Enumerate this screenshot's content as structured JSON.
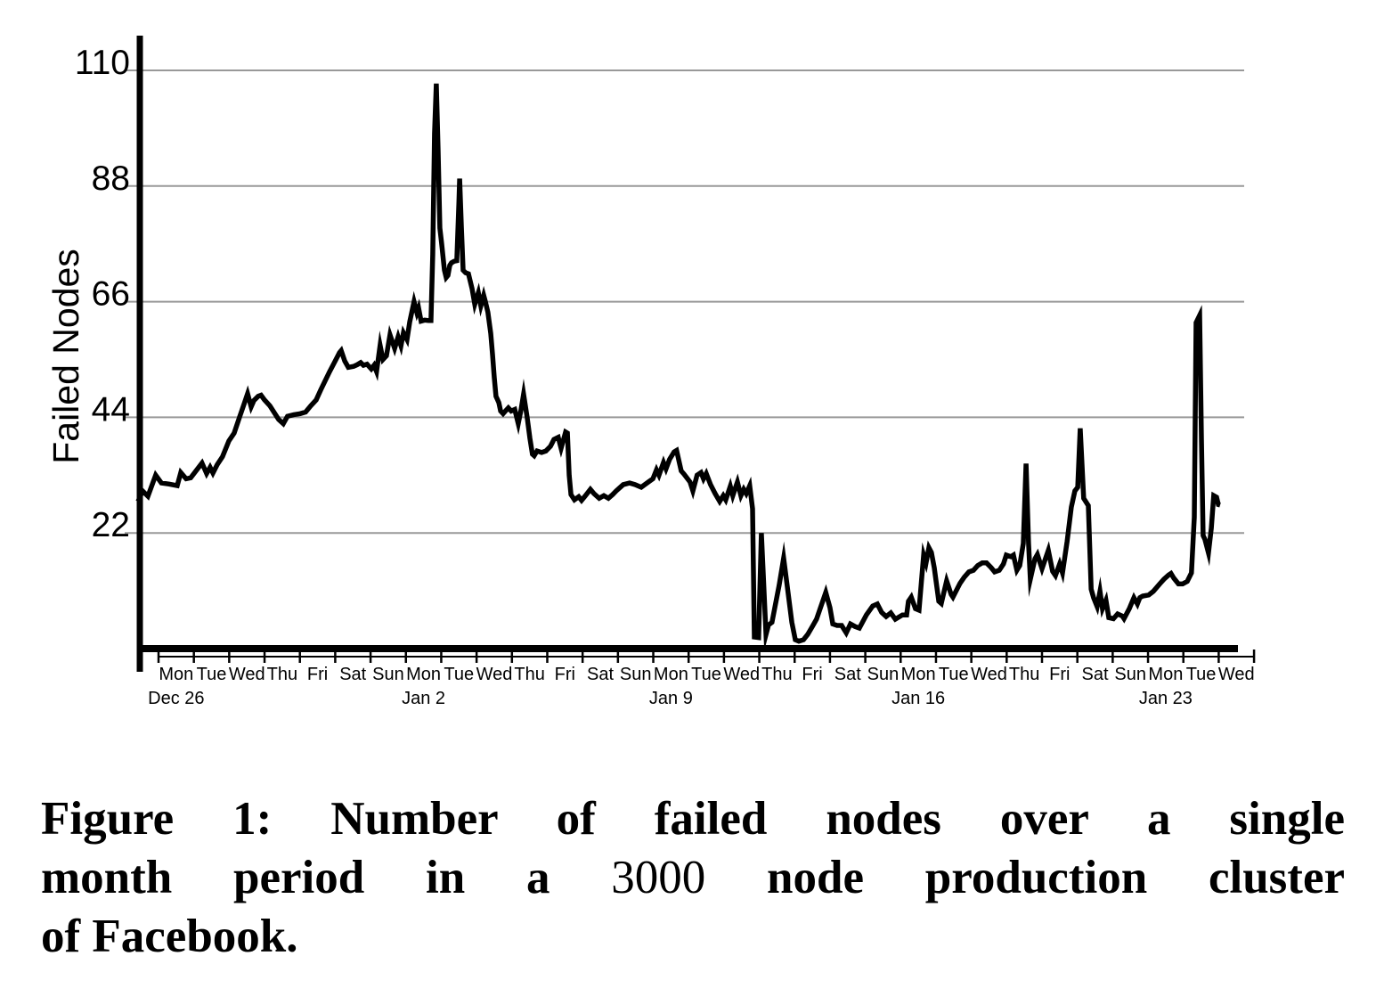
{
  "caption": {
    "line1": "Figure 1: Number of failed nodes over a single",
    "line2_prefix": "month period in a ",
    "line2_number": "3000",
    "line2_suffix": " node production cluster",
    "line3": "of Facebook."
  },
  "chart_data": {
    "type": "line",
    "title": "",
    "xlabel": "",
    "ylabel": "Failed Nodes",
    "x_unit": "days (0 = start of Mon Dec 26)",
    "xlim": [
      -0.6,
      31
    ],
    "ylim": [
      0,
      116
    ],
    "yticks": [
      22,
      44,
      66,
      88,
      110
    ],
    "grid": "horizontal-only",
    "legend": "none",
    "line_color": "#000000",
    "grid_color": "#999999",
    "axis_color": "#000000",
    "day_labels": [
      "Mon",
      "Tue",
      "Wed",
      "Thu",
      "Fri",
      "Sat",
      "Sun",
      "Mon",
      "Tue",
      "Wed",
      "Thu",
      "Fri",
      "Sat",
      "Sun",
      "Mon",
      "Tue",
      "Wed",
      "Thu",
      "Fri",
      "Sat",
      "Sun",
      "Mon",
      "Tue",
      "Wed",
      "Thu",
      "Fri",
      "Sat",
      "Sun",
      "Mon",
      "Tue",
      "Wed"
    ],
    "date_labels": [
      {
        "day_index": 0,
        "label": "Dec 26"
      },
      {
        "day_index": 7,
        "label": "Jan 2"
      },
      {
        "day_index": 14,
        "label": "Jan 9"
      },
      {
        "day_index": 21,
        "label": "Jan 16"
      },
      {
        "day_index": 28,
        "label": "Jan 23"
      }
    ],
    "series": [
      {
        "name": "failed_nodes",
        "points": [
          [
            -0.58,
            28
          ],
          [
            -0.45,
            30
          ],
          [
            -0.3,
            29
          ],
          [
            -0.08,
            33
          ],
          [
            0.08,
            31.5
          ],
          [
            0.3,
            31.3
          ],
          [
            0.53,
            31
          ],
          [
            0.63,
            33.5
          ],
          [
            0.78,
            32.3
          ],
          [
            0.91,
            32.5
          ],
          [
            1.08,
            34
          ],
          [
            1.23,
            35.3
          ],
          [
            1.36,
            33.3
          ],
          [
            1.46,
            34.5
          ],
          [
            1.54,
            33.4
          ],
          [
            1.66,
            35
          ],
          [
            1.81,
            36.5
          ],
          [
            1.99,
            39.5
          ],
          [
            2.14,
            41
          ],
          [
            2.29,
            44
          ],
          [
            2.42,
            46.5
          ],
          [
            2.52,
            48.5
          ],
          [
            2.62,
            46
          ],
          [
            2.7,
            47.2
          ],
          [
            2.82,
            48
          ],
          [
            2.9,
            48.2
          ],
          [
            3,
            47.3
          ],
          [
            3.15,
            46.2
          ],
          [
            3.4,
            43.6
          ],
          [
            3.53,
            42.8
          ],
          [
            3.65,
            44.2
          ],
          [
            3.83,
            44.5
          ],
          [
            4.01,
            44.7
          ],
          [
            4.16,
            45
          ],
          [
            4.31,
            46.2
          ],
          [
            4.46,
            47.3
          ],
          [
            4.59,
            49.2
          ],
          [
            4.74,
            51.3
          ],
          [
            4.84,
            52.7
          ],
          [
            4.99,
            54.6
          ],
          [
            5.12,
            56.3
          ],
          [
            5.17,
            56.7
          ],
          [
            5.27,
            54.7
          ],
          [
            5.37,
            53.5
          ],
          [
            5.52,
            53.7
          ],
          [
            5.62,
            54
          ],
          [
            5.72,
            54.4
          ],
          [
            5.8,
            53.9
          ],
          [
            5.9,
            54.1
          ],
          [
            6.02,
            53.2
          ],
          [
            6.1,
            53.9
          ],
          [
            6.17,
            52.7
          ],
          [
            6.27,
            57.7
          ],
          [
            6.35,
            55
          ],
          [
            6.45,
            55.7
          ],
          [
            6.55,
            59.7
          ],
          [
            6.68,
            57.1
          ],
          [
            6.78,
            59.3
          ],
          [
            6.86,
            57.6
          ],
          [
            6.93,
            60.1
          ],
          [
            7.03,
            58.8
          ],
          [
            7.11,
            62.2
          ],
          [
            7.23,
            66
          ],
          [
            7.31,
            63.9
          ],
          [
            7.36,
            64.8
          ],
          [
            7.43,
            62.3
          ],
          [
            7.53,
            62.5
          ],
          [
            7.64,
            62.4
          ],
          [
            7.71,
            62.4
          ],
          [
            7.76,
            75
          ],
          [
            7.81,
            98
          ],
          [
            7.86,
            107.5
          ],
          [
            7.91,
            95
          ],
          [
            7.96,
            80
          ],
          [
            8.01,
            77.2
          ],
          [
            8.09,
            72
          ],
          [
            8.14,
            70.6
          ],
          [
            8.19,
            71
          ],
          [
            8.24,
            72.9
          ],
          [
            8.29,
            73.4
          ],
          [
            8.37,
            73.7
          ],
          [
            8.44,
            73.8
          ],
          [
            8.5,
            85
          ],
          [
            8.52,
            89.4
          ],
          [
            8.57,
            80
          ],
          [
            8.62,
            72
          ],
          [
            8.69,
            71.5
          ],
          [
            8.77,
            71.3
          ],
          [
            8.87,
            68.5
          ],
          [
            8.95,
            65.5
          ],
          [
            9.05,
            67.7
          ],
          [
            9.12,
            65.2
          ],
          [
            9.2,
            67.2
          ],
          [
            9.25,
            66
          ],
          [
            9.32,
            64
          ],
          [
            9.4,
            60
          ],
          [
            9.45,
            56
          ],
          [
            9.5,
            51.5
          ],
          [
            9.55,
            48
          ],
          [
            9.63,
            46.8
          ],
          [
            9.68,
            45.2
          ],
          [
            9.75,
            44.7
          ],
          [
            9.83,
            45.3
          ],
          [
            9.9,
            45.8
          ],
          [
            9.98,
            45.2
          ],
          [
            10.08,
            45.5
          ],
          [
            10.18,
            42.8
          ],
          [
            10.26,
            45.5
          ],
          [
            10.33,
            48.4
          ],
          [
            10.43,
            44
          ],
          [
            10.51,
            40
          ],
          [
            10.58,
            37
          ],
          [
            10.63,
            36.7
          ],
          [
            10.71,
            37.6
          ],
          [
            10.84,
            37.3
          ],
          [
            10.96,
            37.6
          ],
          [
            11.09,
            38.5
          ],
          [
            11.19,
            39.8
          ],
          [
            11.31,
            40.2
          ],
          [
            11.39,
            38.1
          ],
          [
            11.52,
            41.2
          ],
          [
            11.57,
            41
          ],
          [
            11.62,
            33
          ],
          [
            11.67,
            29.3
          ],
          [
            11.77,
            28.3
          ],
          [
            11.89,
            28.9
          ],
          [
            11.97,
            28.2
          ],
          [
            12.07,
            29
          ],
          [
            12.22,
            30.3
          ],
          [
            12.32,
            29.5
          ],
          [
            12.47,
            28.6
          ],
          [
            12.6,
            29.1
          ],
          [
            12.73,
            28.6
          ],
          [
            12.85,
            29.3
          ],
          [
            12.95,
            30
          ],
          [
            13.15,
            31.2
          ],
          [
            13.33,
            31.5
          ],
          [
            13.48,
            31.2
          ],
          [
            13.66,
            30.7
          ],
          [
            13.86,
            31.7
          ],
          [
            13.99,
            32.3
          ],
          [
            14.09,
            34
          ],
          [
            14.16,
            33
          ],
          [
            14.29,
            35.4
          ],
          [
            14.36,
            34.2
          ],
          [
            14.46,
            36
          ],
          [
            14.59,
            37.4
          ],
          [
            14.66,
            37.7
          ],
          [
            14.79,
            33.8
          ],
          [
            14.87,
            33.2
          ],
          [
            15.04,
            31.7
          ],
          [
            15.12,
            30
          ],
          [
            15.24,
            33
          ],
          [
            15.35,
            33.5
          ],
          [
            15.42,
            32.3
          ],
          [
            15.5,
            33.3
          ],
          [
            15.62,
            31.2
          ],
          [
            15.75,
            29.5
          ],
          [
            15.88,
            28
          ],
          [
            15.98,
            29.1
          ],
          [
            16.05,
            28.3
          ],
          [
            16.18,
            30.9
          ],
          [
            16.25,
            29.1
          ],
          [
            16.38,
            31.7
          ],
          [
            16.48,
            29.1
          ],
          [
            16.56,
            30.3
          ],
          [
            16.63,
            29.5
          ],
          [
            16.73,
            31
          ],
          [
            16.81,
            26.6
          ],
          [
            16.86,
            2.2
          ],
          [
            16.98,
            2.1
          ],
          [
            17.06,
            22
          ],
          [
            17.19,
            2.7
          ],
          [
            17.26,
            4.5
          ],
          [
            17.36,
            5
          ],
          [
            17.56,
            12
          ],
          [
            17.69,
            17.2
          ],
          [
            17.77,
            13
          ],
          [
            17.92,
            5
          ],
          [
            18.02,
            1.7
          ],
          [
            18.12,
            1.4
          ],
          [
            18.25,
            1.7
          ],
          [
            18.37,
            2.7
          ],
          [
            18.5,
            4.2
          ],
          [
            18.62,
            5.6
          ],
          [
            18.88,
            10.7
          ],
          [
            19,
            7.8
          ],
          [
            19.08,
            4.7
          ],
          [
            19.2,
            4.4
          ],
          [
            19.33,
            4.4
          ],
          [
            19.46,
            3
          ],
          [
            19.58,
            4.7
          ],
          [
            19.71,
            4.2
          ],
          [
            19.83,
            3.9
          ],
          [
            20.03,
            6.4
          ],
          [
            20.21,
            8.1
          ],
          [
            20.34,
            8.5
          ],
          [
            20.46,
            6.9
          ],
          [
            20.59,
            6.1
          ],
          [
            20.72,
            6.8
          ],
          [
            20.85,
            5.6
          ],
          [
            21.05,
            6.4
          ],
          [
            21.17,
            6.4
          ],
          [
            21.22,
            9
          ],
          [
            21.3,
            9.8
          ],
          [
            21.42,
            7.6
          ],
          [
            21.52,
            7.3
          ],
          [
            21.65,
            17.8
          ],
          [
            21.72,
            16.3
          ],
          [
            21.8,
            19.2
          ],
          [
            21.87,
            18.3
          ],
          [
            21.95,
            15.4
          ],
          [
            22.08,
            9
          ],
          [
            22.15,
            8.6
          ],
          [
            22.3,
            12.9
          ],
          [
            22.43,
            10.3
          ],
          [
            22.48,
            9.8
          ],
          [
            22.68,
            12.4
          ],
          [
            22.8,
            13.6
          ],
          [
            22.93,
            14.6
          ],
          [
            23.06,
            14.9
          ],
          [
            23.18,
            15.8
          ],
          [
            23.31,
            16.3
          ],
          [
            23.43,
            16.3
          ],
          [
            23.56,
            15.4
          ],
          [
            23.66,
            14.6
          ],
          [
            23.79,
            14.9
          ],
          [
            23.91,
            16.1
          ],
          [
            23.99,
            17.8
          ],
          [
            24.12,
            17.5
          ],
          [
            24.19,
            17.8
          ],
          [
            24.29,
            14.9
          ],
          [
            24.37,
            15.8
          ],
          [
            24.47,
            20
          ],
          [
            24.55,
            35.2
          ],
          [
            24.62,
            20
          ],
          [
            24.67,
            13.2
          ],
          [
            24.8,
            17.1
          ],
          [
            24.87,
            17.9
          ],
          [
            25,
            15.2
          ],
          [
            25.18,
            18.7
          ],
          [
            25.3,
            14.7
          ],
          [
            25.38,
            13.9
          ],
          [
            25.5,
            16.1
          ],
          [
            25.58,
            14.4
          ],
          [
            25.71,
            20.4
          ],
          [
            25.83,
            26.9
          ],
          [
            25.93,
            30
          ],
          [
            26.01,
            30.7
          ],
          [
            26.08,
            41.9
          ],
          [
            26.18,
            28.6
          ],
          [
            26.31,
            27.2
          ],
          [
            26.39,
            11.3
          ],
          [
            26.46,
            9.7
          ],
          [
            26.56,
            8
          ],
          [
            26.64,
            10.9
          ],
          [
            26.71,
            7.6
          ],
          [
            26.81,
            9.2
          ],
          [
            26.89,
            5.9
          ],
          [
            27.02,
            5.7
          ],
          [
            27.14,
            6.6
          ],
          [
            27.27,
            6.2
          ],
          [
            27.32,
            5.7
          ],
          [
            27.47,
            7.6
          ],
          [
            27.6,
            9.7
          ],
          [
            27.7,
            8.5
          ],
          [
            27.77,
            9.7
          ],
          [
            27.85,
            10
          ],
          [
            28.02,
            10.2
          ],
          [
            28.15,
            10.9
          ],
          [
            28.33,
            12.3
          ],
          [
            28.45,
            13.2
          ],
          [
            28.58,
            14
          ],
          [
            28.65,
            14.3
          ],
          [
            28.73,
            13.4
          ],
          [
            28.86,
            12.3
          ],
          [
            28.98,
            12.3
          ],
          [
            29.11,
            12.8
          ],
          [
            29.23,
            14.4
          ],
          [
            29.31,
            25
          ],
          [
            29.36,
            62
          ],
          [
            29.46,
            63.4
          ],
          [
            29.51,
            40
          ],
          [
            29.56,
            21.5
          ],
          [
            29.61,
            20.8
          ],
          [
            29.71,
            18.2
          ],
          [
            29.79,
            22.9
          ],
          [
            29.86,
            29.1
          ],
          [
            29.94,
            28.8
          ],
          [
            29.99,
            27.4
          ],
          [
            30.04,
            27.3
          ]
        ]
      }
    ]
  }
}
